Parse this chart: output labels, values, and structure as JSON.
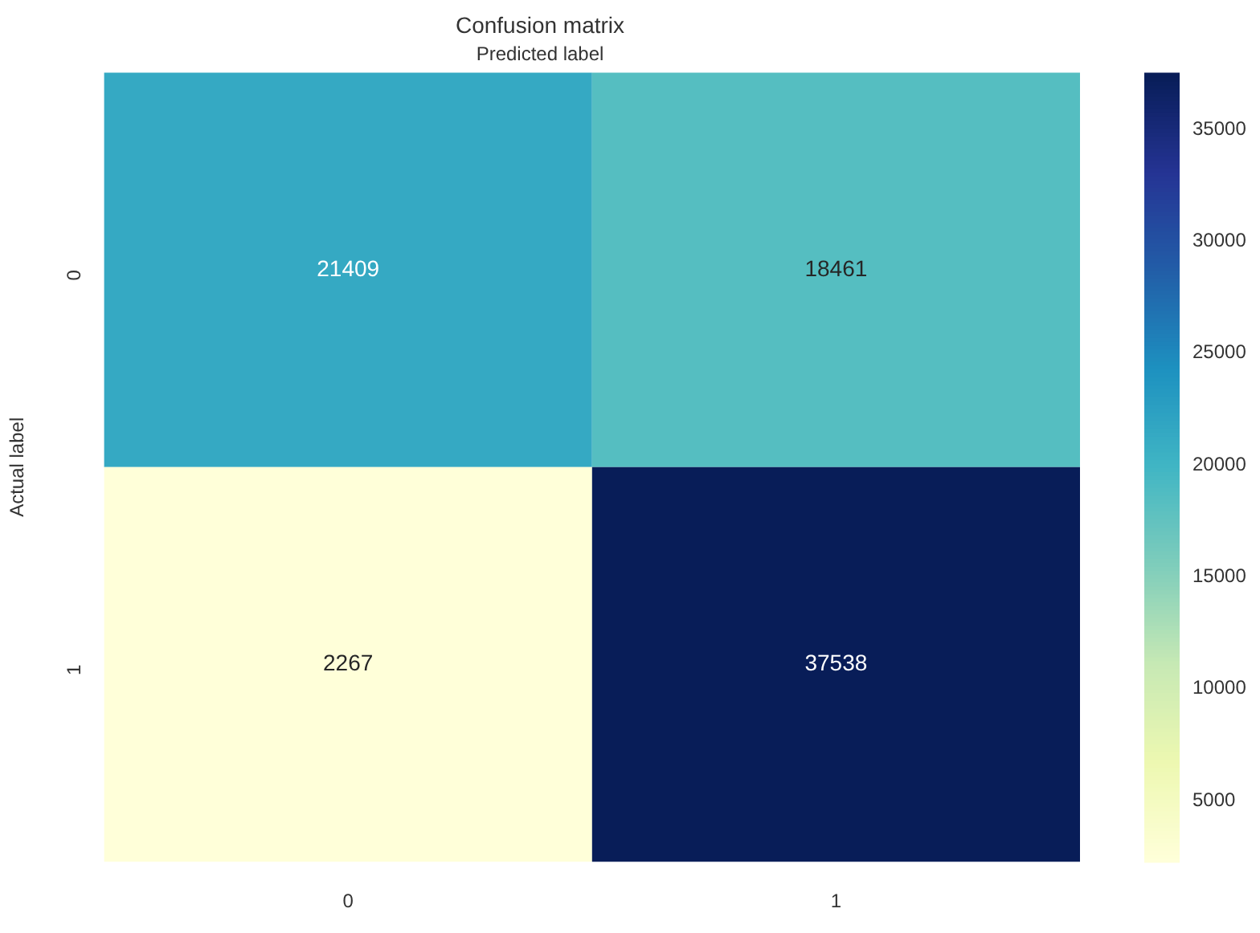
{
  "chart_data": {
    "type": "heatmap",
    "title": "Confusion matrix",
    "xlabel": "Predicted label",
    "ylabel": "Actual label",
    "categories": [
      "0",
      "1"
    ],
    "y_categories": [
      "0",
      "1"
    ],
    "cells": [
      [
        21409,
        18461
      ],
      [
        2267,
        37538
      ]
    ],
    "data_labels": true,
    "clim": [
      2267,
      37538
    ],
    "cticks": [
      5000,
      10000,
      15000,
      20000,
      25000,
      30000,
      35000
    ]
  }
}
